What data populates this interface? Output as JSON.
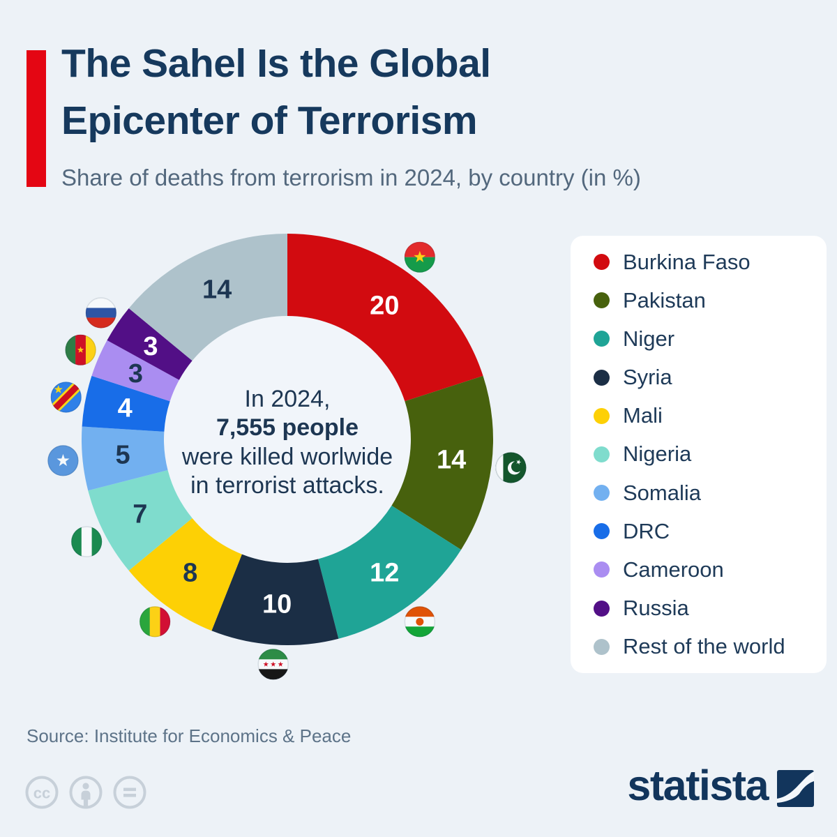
{
  "page": {
    "background": "#edf2f7",
    "accent_bar_color": "#e40613"
  },
  "header": {
    "title_line1": "The Sahel Is the Global",
    "title_line2": "Epicenter of Terrorism",
    "subtitle": "Share of deaths from terrorism in 2024, by country (in %)"
  },
  "chart_data": {
    "type": "pie",
    "donut": true,
    "title": "Share of deaths from terrorism in 2024, by country (in %)",
    "unit": "%",
    "start_angle_deg": 0,
    "direction": "clockwise",
    "legend_position": "right",
    "slices": [
      {
        "label": "Burkina Faso",
        "value": 20,
        "color": "#d20b10",
        "label_color": "#ffffff",
        "flag": "burkina_faso"
      },
      {
        "label": "Pakistan",
        "value": 14,
        "color": "#47610d",
        "label_color": "#ffffff",
        "flag": "pakistan"
      },
      {
        "label": "Niger",
        "value": 12,
        "color": "#1fa496",
        "label_color": "#ffffff",
        "flag": "niger"
      },
      {
        "label": "Syria",
        "value": 10,
        "color": "#1b2e45",
        "label_color": "#ffffff",
        "flag": "syria"
      },
      {
        "label": "Mali",
        "value": 8,
        "color": "#fdd005",
        "label_color": "#1d3652",
        "flag": "mali"
      },
      {
        "label": "Nigeria",
        "value": 7,
        "color": "#7fdccd",
        "label_color": "#1d3652",
        "flag": "nigeria"
      },
      {
        "label": "Somalia",
        "value": 5,
        "color": "#72b0f0",
        "label_color": "#1d3652",
        "flag": "somalia"
      },
      {
        "label": "DRC",
        "value": 4,
        "color": "#186de8",
        "label_color": "#ffffff",
        "flag": "drc"
      },
      {
        "label": "Cameroon",
        "value": 3,
        "color": "#aa8df1",
        "label_color": "#1d3652",
        "flag": "cameroon"
      },
      {
        "label": "Russia",
        "value": 3,
        "color": "#520f86",
        "label_color": "#ffffff",
        "flag": "russia"
      },
      {
        "label": "Rest of the world",
        "value": 14,
        "color": "#aec2cb",
        "label_color": "#1d3652",
        "flag": null
      }
    ],
    "center_text": {
      "line1": "In 2024,",
      "line2": "7,555 people",
      "line3": "were killed worlwide",
      "line4": "in terrorist attacks."
    }
  },
  "footer": {
    "source": "Source: Institute for Economics & Peace",
    "license_icons": [
      "cc",
      "by",
      "nd"
    ],
    "brand": "statista"
  }
}
